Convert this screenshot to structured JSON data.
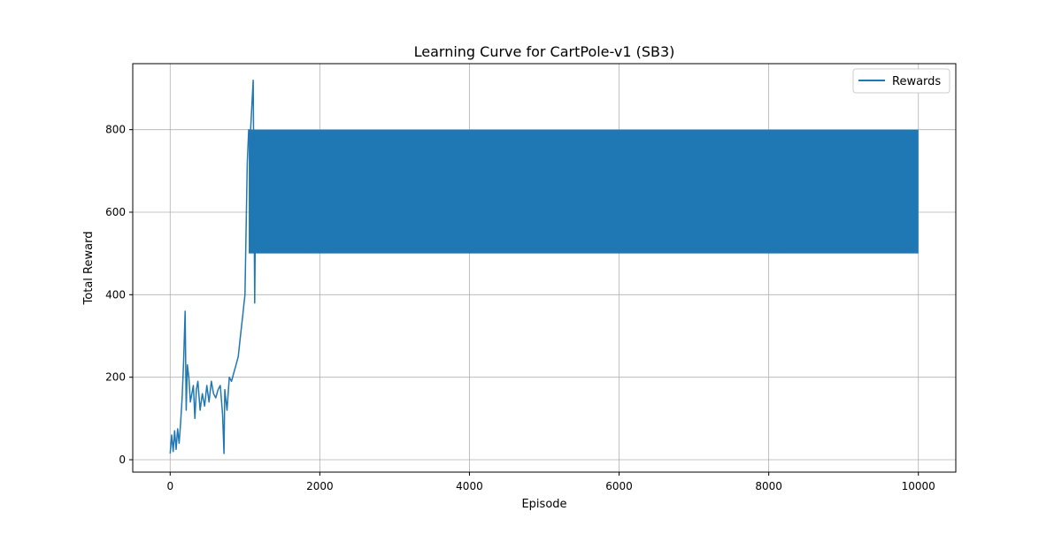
{
  "chart_data": {
    "type": "line",
    "title": "Learning Curve for CartPole-v1 (SB3)",
    "xlabel": "Episode",
    "ylabel": "Total Reward",
    "xlim": [
      -500,
      10500
    ],
    "ylim": [
      -30,
      960
    ],
    "xticks": [
      0,
      2000,
      4000,
      6000,
      8000,
      10000
    ],
    "yticks": [
      0,
      200,
      400,
      600,
      800
    ],
    "grid": true,
    "legend_position": "upper right",
    "series": [
      {
        "name": "Rewards",
        "color": "#1f77b4",
        "x": [
          0,
          20,
          40,
          60,
          80,
          100,
          120,
          140,
          160,
          180,
          200,
          215,
          230,
          250,
          270,
          290,
          310,
          330,
          350,
          370,
          400,
          430,
          460,
          490,
          520,
          550,
          580,
          610,
          640,
          670,
          700,
          720,
          730,
          760,
          790,
          820,
          850,
          880,
          910,
          940,
          970,
          1000,
          1030,
          1050,
          1070,
          1090,
          1110,
          1130,
          1150
        ],
        "y": [
          15,
          60,
          20,
          70,
          25,
          75,
          40,
          90,
          150,
          240,
          360,
          120,
          230,
          200,
          140,
          160,
          180,
          100,
          170,
          190,
          120,
          160,
          130,
          180,
          140,
          190,
          160,
          150,
          170,
          180,
          110,
          15,
          170,
          120,
          200,
          190,
          210,
          230,
          250,
          300,
          350,
          400,
          720,
          800,
          780,
          850,
          920,
          380,
          800
        ],
        "band": {
          "x_start": 1050,
          "x_end": 10000,
          "y_low": 500,
          "y_high": 800
        }
      }
    ]
  }
}
